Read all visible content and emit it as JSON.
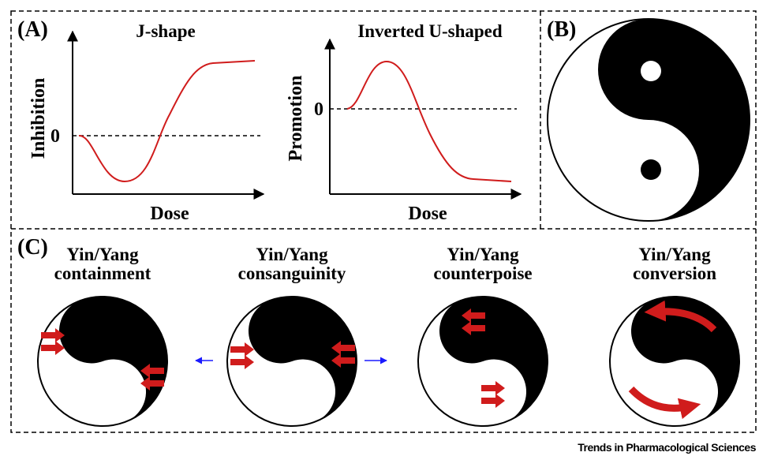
{
  "panel_a": {
    "label": "(A)",
    "left": {
      "title": "J-shape",
      "y_label": "Inhibition",
      "zero": "0",
      "x_label": "Dose"
    },
    "right": {
      "title": "Inverted U-shaped",
      "y_label": "Promotion",
      "zero": "0",
      "x_label": "Dose"
    }
  },
  "panel_b": {
    "label": "(B)"
  },
  "panel_c": {
    "label": "(C)",
    "items": [
      {
        "line1": "Yin/Yang",
        "line2": "containment"
      },
      {
        "line1": "Yin/Yang",
        "line2": "consanguinity"
      },
      {
        "line1": "Yin/Yang",
        "line2": "counterpoise"
      },
      {
        "line1": "Yin/Yang",
        "line2": "conversion"
      }
    ]
  },
  "footer": "Trends in Pharmacological Sciences"
}
